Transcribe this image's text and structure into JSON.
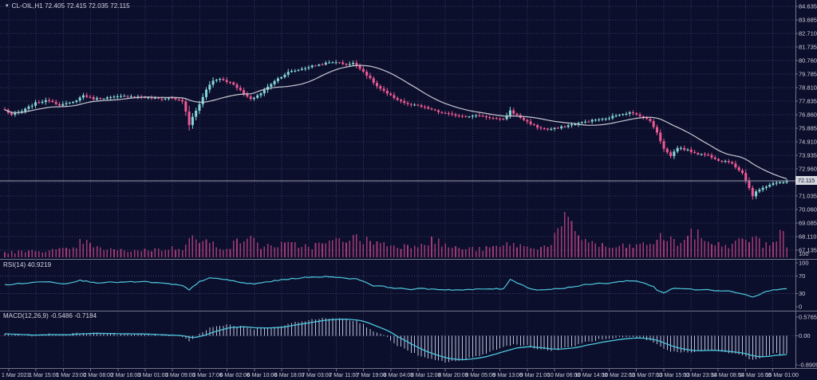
{
  "header": {
    "symbol_info": "CL-OIL,H1 72.405 72.415 72.035 72.115",
    "icon": "▾"
  },
  "colors": {
    "background": "#0c0f2b",
    "grid": "#343b68",
    "level_grid": "#3a4170",
    "bull": "#86d9d9",
    "bear": "#ef5a95",
    "volume": "#a23a76",
    "ma_line": "#c6c8d2",
    "rsi_line": "#4ec7de",
    "macd_line": "#4ec7de",
    "macd_hist": "#b9c1da",
    "axis_text": "#ccd0de",
    "separator": "#70758a",
    "price_line": "#9a9eae",
    "price_tag_bg": "#d5d7de",
    "price_tag_text": "#11152f"
  },
  "price_axis": {
    "labels": [
      "84.635",
      "83.685",
      "82.710",
      "81.735",
      "80.760",
      "79.785",
      "78.810",
      "77.835",
      "76.860",
      "75.885",
      "74.910",
      "73.935",
      "72.960",
      null,
      "71.035",
      "70.060",
      "69.085",
      "68.110",
      "67.135"
    ],
    "current_price": "72.115",
    "volume_label": "100"
  },
  "rsi_panel": {
    "label": "RSI(14) 40.9219",
    "axis_labels": [
      "100",
      "70",
      "30",
      "0"
    ],
    "axis_values": [
      100,
      70,
      30,
      0
    ],
    "levels": [
      70,
      30
    ]
  },
  "macd_panel": {
    "label": "MACD(12,26,9) -0.5486 -0.7184",
    "axis_labels": [
      "0.5765",
      "0.00",
      "-0.8909"
    ],
    "axis_values": [
      0.5765,
      0,
      -0.8909
    ]
  },
  "time_axis": {
    "labels": [
      "1 Mar 2023",
      "1 Mar 15:00",
      "1 Mar 23:00",
      "2 Mar 08:00",
      "2 Mar 16:00",
      "3 Mar 01:00",
      "3 Mar 09:00",
      "3 Mar 17:00",
      "6 Mar 02:00",
      "6 Mar 10:00",
      "6 Mar 18:00",
      "7 Mar 03:00",
      "7 Mar 11:00",
      "7 Mar 19:00",
      "8 Mar 04:00",
      "8 Mar 12:00",
      "8 Mar 20:00",
      "9 Mar 05:00",
      "9 Mar 13:00",
      "9 Mar 21:00",
      "10 Mar 06:00",
      "10 Mar 14:00",
      "10 Mar 22:00",
      "13 Mar 07:00",
      "13 Mar 15:00",
      "13 Mar 23:00",
      "14 Mar 08:00",
      "14 Mar 16:00",
      "15 Mar 01:00"
    ]
  },
  "chart_data": [
    {
      "type": "candlestick",
      "title": "CL-OIL",
      "timeframe": "H1",
      "ohlc_display": {
        "open": "72.405",
        "high": "72.415",
        "low": "72.035",
        "close": "72.115"
      },
      "ylim": [
        67.135,
        84.635
      ],
      "bars": 230,
      "ma_period": 20,
      "close_path_anchors": [
        [
          0,
          77.2
        ],
        [
          2,
          76.85
        ],
        [
          5,
          77.1
        ],
        [
          9,
          77.7
        ],
        [
          13,
          77.9
        ],
        [
          16,
          77.55
        ],
        [
          20,
          77.75
        ],
        [
          23,
          78.25
        ],
        [
          26,
          78.0
        ],
        [
          31,
          78.1
        ],
        [
          36,
          78.2
        ],
        [
          41,
          78.1
        ],
        [
          45,
          78.0
        ],
        [
          49,
          78.05
        ],
        [
          52,
          77.8
        ],
        [
          53,
          77.1
        ],
        [
          54,
          76.1
        ],
        [
          55,
          76.7
        ],
        [
          57,
          77.6
        ],
        [
          59,
          78.7
        ],
        [
          61,
          79.3
        ],
        [
          63,
          79.45
        ],
        [
          67,
          79.05
        ],
        [
          70,
          78.35
        ],
        [
          72,
          77.95
        ],
        [
          75,
          78.4
        ],
        [
          79,
          79.3
        ],
        [
          83,
          79.9
        ],
        [
          87,
          80.15
        ],
        [
          90,
          80.35
        ],
        [
          94,
          80.55
        ],
        [
          97,
          80.65
        ],
        [
          100,
          80.45
        ],
        [
          102,
          80.55
        ],
        [
          104,
          80.2
        ],
        [
          106,
          79.7
        ],
        [
          109,
          78.9
        ],
        [
          112,
          78.35
        ],
        [
          115,
          77.95
        ],
        [
          118,
          77.6
        ],
        [
          121,
          77.5
        ],
        [
          124,
          77.3
        ],
        [
          127,
          77.05
        ],
        [
          131,
          76.85
        ],
        [
          135,
          76.75
        ],
        [
          139,
          76.8
        ],
        [
          143,
          76.6
        ],
        [
          146,
          76.5
        ],
        [
          148,
          77.15
        ],
        [
          150,
          76.8
        ],
        [
          153,
          76.35
        ],
        [
          156,
          75.95
        ],
        [
          159,
          75.8
        ],
        [
          162,
          75.9
        ],
        [
          166,
          76.15
        ],
        [
          169,
          76.3
        ],
        [
          173,
          76.5
        ],
        [
          176,
          76.55
        ],
        [
          180,
          76.9
        ],
        [
          183,
          77.0
        ],
        [
          186,
          76.8
        ],
        [
          189,
          76.4
        ],
        [
          191,
          75.6
        ],
        [
          193,
          74.4
        ],
        [
          195,
          73.9
        ],
        [
          197,
          74.5
        ],
        [
          200,
          74.3
        ],
        [
          203,
          74.05
        ],
        [
          206,
          73.95
        ],
        [
          209,
          73.6
        ],
        [
          212,
          73.5
        ],
        [
          214,
          73.1
        ],
        [
          216,
          72.7
        ],
        [
          218,
          71.6
        ],
        [
          219,
          71.0
        ],
        [
          220,
          71.3
        ],
        [
          222,
          71.6
        ],
        [
          224,
          71.85
        ],
        [
          226,
          71.95
        ],
        [
          228,
          72.05
        ],
        [
          229,
          72.115
        ]
      ]
    },
    {
      "type": "bar",
      "name": "Volume",
      "max_label": "100",
      "anchors": [
        [
          0,
          6
        ],
        [
          10,
          8
        ],
        [
          20,
          10
        ],
        [
          23,
          22
        ],
        [
          26,
          12
        ],
        [
          35,
          8
        ],
        [
          45,
          10
        ],
        [
          52,
          12
        ],
        [
          54,
          30
        ],
        [
          56,
          20
        ],
        [
          60,
          18
        ],
        [
          65,
          12
        ],
        [
          71,
          26
        ],
        [
          75,
          14
        ],
        [
          83,
          16
        ],
        [
          90,
          14
        ],
        [
          97,
          20
        ],
        [
          101,
          26
        ],
        [
          104,
          22
        ],
        [
          108,
          20
        ],
        [
          112,
          16
        ],
        [
          118,
          14
        ],
        [
          125,
          22
        ],
        [
          131,
          12
        ],
        [
          139,
          10
        ],
        [
          146,
          14
        ],
        [
          148,
          18
        ],
        [
          153,
          12
        ],
        [
          159,
          14
        ],
        [
          164,
          44
        ],
        [
          166,
          38
        ],
        [
          168,
          28
        ],
        [
          172,
          18
        ],
        [
          177,
          12
        ],
        [
          183,
          14
        ],
        [
          188,
          16
        ],
        [
          193,
          26
        ],
        [
          197,
          18
        ],
        [
          202,
          30
        ],
        [
          205,
          22
        ],
        [
          210,
          14
        ],
        [
          214,
          18
        ],
        [
          219,
          26
        ],
        [
          222,
          16
        ],
        [
          226,
          22
        ],
        [
          228,
          34
        ],
        [
          229,
          12
        ]
      ]
    },
    {
      "type": "line",
      "name": "RSI(14)",
      "current": 40.9219,
      "range": [
        0,
        100
      ],
      "levels": [
        70,
        30
      ],
      "anchors": [
        [
          0,
          50
        ],
        [
          8,
          55
        ],
        [
          13,
          58
        ],
        [
          17,
          52
        ],
        [
          22,
          60
        ],
        [
          27,
          55
        ],
        [
          34,
          56
        ],
        [
          41,
          57
        ],
        [
          48,
          52
        ],
        [
          52,
          48
        ],
        [
          54,
          38
        ],
        [
          57,
          58
        ],
        [
          60,
          65
        ],
        [
          65,
          62
        ],
        [
          69,
          55
        ],
        [
          73,
          52
        ],
        [
          78,
          58
        ],
        [
          83,
          63
        ],
        [
          87,
          66
        ],
        [
          92,
          68
        ],
        [
          96,
          69
        ],
        [
          99,
          65
        ],
        [
          103,
          64
        ],
        [
          105,
          58
        ],
        [
          108,
          48
        ],
        [
          112,
          45
        ],
        [
          115,
          42
        ],
        [
          119,
          40
        ],
        [
          122,
          41
        ],
        [
          126,
          40
        ],
        [
          129,
          39
        ],
        [
          134,
          38
        ],
        [
          139,
          40
        ],
        [
          143,
          41
        ],
        [
          146,
          40
        ],
        [
          148,
          63
        ],
        [
          150,
          55
        ],
        [
          153,
          44
        ],
        [
          156,
          38
        ],
        [
          160,
          40
        ],
        [
          163,
          42
        ],
        [
          167,
          46
        ],
        [
          170,
          50
        ],
        [
          174,
          53
        ],
        [
          177,
          54
        ],
        [
          181,
          58
        ],
        [
          184,
          60
        ],
        [
          188,
          52
        ],
        [
          190,
          46
        ],
        [
          191,
          38
        ],
        [
          193,
          32
        ],
        [
          196,
          42
        ],
        [
          199,
          41
        ],
        [
          202,
          39
        ],
        [
          205,
          40
        ],
        [
          208,
          37
        ],
        [
          211,
          37
        ],
        [
          213,
          34
        ],
        [
          216,
          30
        ],
        [
          219,
          22
        ],
        [
          221,
          28
        ],
        [
          223,
          35
        ],
        [
          225,
          38
        ],
        [
          227,
          40
        ],
        [
          229,
          40.92
        ]
      ]
    },
    {
      "type": "macd",
      "name": "MACD(12,26,9)",
      "current_macd": -0.5486,
      "current_signal": -0.7184,
      "ylim": [
        -0.8909,
        0.5765
      ],
      "anchors": [
        [
          0,
          0.05
        ],
        [
          8,
          0.0
        ],
        [
          13,
          0.05
        ],
        [
          17,
          0.02
        ],
        [
          22,
          0.1
        ],
        [
          27,
          0.08
        ],
        [
          34,
          0.05
        ],
        [
          41,
          0.05
        ],
        [
          48,
          0.0
        ],
        [
          52,
          -0.05
        ],
        [
          54,
          -0.15
        ],
        [
          57,
          0.05
        ],
        [
          60,
          0.25
        ],
        [
          65,
          0.35
        ],
        [
          69,
          0.3
        ],
        [
          73,
          0.2
        ],
        [
          78,
          0.25
        ],
        [
          83,
          0.35
        ],
        [
          87,
          0.45
        ],
        [
          92,
          0.52
        ],
        [
          96,
          0.55
        ],
        [
          99,
          0.52
        ],
        [
          103,
          0.45
        ],
        [
          105,
          0.35
        ],
        [
          108,
          0.15
        ],
        [
          112,
          -0.05
        ],
        [
          115,
          -0.3
        ],
        [
          119,
          -0.5
        ],
        [
          122,
          -0.65
        ],
        [
          126,
          -0.75
        ],
        [
          129,
          -0.8
        ],
        [
          134,
          -0.75
        ],
        [
          139,
          -0.6
        ],
        [
          143,
          -0.45
        ],
        [
          146,
          -0.35
        ],
        [
          149,
          -0.25
        ],
        [
          153,
          -0.3
        ],
        [
          156,
          -0.4
        ],
        [
          160,
          -0.45
        ],
        [
          163,
          -0.4
        ],
        [
          167,
          -0.3
        ],
        [
          170,
          -0.2
        ],
        [
          174,
          -0.12
        ],
        [
          177,
          -0.1
        ],
        [
          181,
          -0.05
        ],
        [
          184,
          -0.05
        ],
        [
          188,
          -0.12
        ],
        [
          190,
          -0.2
        ],
        [
          193,
          -0.4
        ],
        [
          196,
          -0.5
        ],
        [
          199,
          -0.5
        ],
        [
          202,
          -0.48
        ],
        [
          205,
          -0.45
        ],
        [
          208,
          -0.45
        ],
        [
          211,
          -0.5
        ],
        [
          213,
          -0.55
        ],
        [
          216,
          -0.6
        ],
        [
          219,
          -0.75
        ],
        [
          221,
          -0.7
        ],
        [
          223,
          -0.6
        ],
        [
          225,
          -0.55
        ],
        [
          227,
          -0.55
        ],
        [
          229,
          -0.5486
        ]
      ]
    }
  ]
}
